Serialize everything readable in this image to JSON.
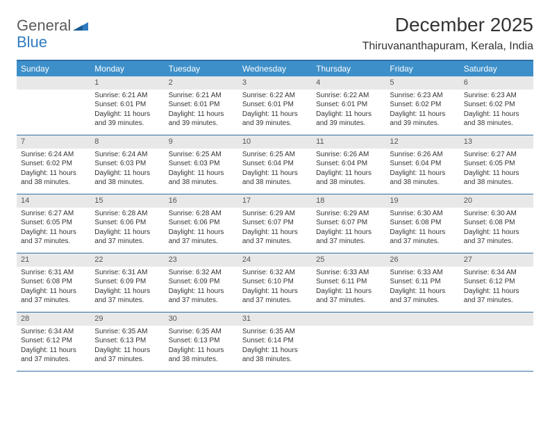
{
  "logo": {
    "text1": "General",
    "text2": "Blue"
  },
  "title": "December 2025",
  "location": "Thiruvananthapuram, Kerala, India",
  "colors": {
    "header_bg": "#3d8fc9",
    "border": "#2f6da3",
    "daynum_bg": "#e8e8e8",
    "text": "#333333",
    "logo_gray": "#5a5a5a",
    "logo_blue": "#2f7bbf"
  },
  "day_names": [
    "Sunday",
    "Monday",
    "Tuesday",
    "Wednesday",
    "Thursday",
    "Friday",
    "Saturday"
  ],
  "start_offset": 1,
  "days": [
    {
      "n": 1,
      "sr": "6:21 AM",
      "ss": "6:01 PM",
      "dl": "11 hours and 39 minutes."
    },
    {
      "n": 2,
      "sr": "6:21 AM",
      "ss": "6:01 PM",
      "dl": "11 hours and 39 minutes."
    },
    {
      "n": 3,
      "sr": "6:22 AM",
      "ss": "6:01 PM",
      "dl": "11 hours and 39 minutes."
    },
    {
      "n": 4,
      "sr": "6:22 AM",
      "ss": "6:01 PM",
      "dl": "11 hours and 39 minutes."
    },
    {
      "n": 5,
      "sr": "6:23 AM",
      "ss": "6:02 PM",
      "dl": "11 hours and 39 minutes."
    },
    {
      "n": 6,
      "sr": "6:23 AM",
      "ss": "6:02 PM",
      "dl": "11 hours and 38 minutes."
    },
    {
      "n": 7,
      "sr": "6:24 AM",
      "ss": "6:02 PM",
      "dl": "11 hours and 38 minutes."
    },
    {
      "n": 8,
      "sr": "6:24 AM",
      "ss": "6:03 PM",
      "dl": "11 hours and 38 minutes."
    },
    {
      "n": 9,
      "sr": "6:25 AM",
      "ss": "6:03 PM",
      "dl": "11 hours and 38 minutes."
    },
    {
      "n": 10,
      "sr": "6:25 AM",
      "ss": "6:04 PM",
      "dl": "11 hours and 38 minutes."
    },
    {
      "n": 11,
      "sr": "6:26 AM",
      "ss": "6:04 PM",
      "dl": "11 hours and 38 minutes."
    },
    {
      "n": 12,
      "sr": "6:26 AM",
      "ss": "6:04 PM",
      "dl": "11 hours and 38 minutes."
    },
    {
      "n": 13,
      "sr": "6:27 AM",
      "ss": "6:05 PM",
      "dl": "11 hours and 38 minutes."
    },
    {
      "n": 14,
      "sr": "6:27 AM",
      "ss": "6:05 PM",
      "dl": "11 hours and 37 minutes."
    },
    {
      "n": 15,
      "sr": "6:28 AM",
      "ss": "6:06 PM",
      "dl": "11 hours and 37 minutes."
    },
    {
      "n": 16,
      "sr": "6:28 AM",
      "ss": "6:06 PM",
      "dl": "11 hours and 37 minutes."
    },
    {
      "n": 17,
      "sr": "6:29 AM",
      "ss": "6:07 PM",
      "dl": "11 hours and 37 minutes."
    },
    {
      "n": 18,
      "sr": "6:29 AM",
      "ss": "6:07 PM",
      "dl": "11 hours and 37 minutes."
    },
    {
      "n": 19,
      "sr": "6:30 AM",
      "ss": "6:08 PM",
      "dl": "11 hours and 37 minutes."
    },
    {
      "n": 20,
      "sr": "6:30 AM",
      "ss": "6:08 PM",
      "dl": "11 hours and 37 minutes."
    },
    {
      "n": 21,
      "sr": "6:31 AM",
      "ss": "6:08 PM",
      "dl": "11 hours and 37 minutes."
    },
    {
      "n": 22,
      "sr": "6:31 AM",
      "ss": "6:09 PM",
      "dl": "11 hours and 37 minutes."
    },
    {
      "n": 23,
      "sr": "6:32 AM",
      "ss": "6:09 PM",
      "dl": "11 hours and 37 minutes."
    },
    {
      "n": 24,
      "sr": "6:32 AM",
      "ss": "6:10 PM",
      "dl": "11 hours and 37 minutes."
    },
    {
      "n": 25,
      "sr": "6:33 AM",
      "ss": "6:11 PM",
      "dl": "11 hours and 37 minutes."
    },
    {
      "n": 26,
      "sr": "6:33 AM",
      "ss": "6:11 PM",
      "dl": "11 hours and 37 minutes."
    },
    {
      "n": 27,
      "sr": "6:34 AM",
      "ss": "6:12 PM",
      "dl": "11 hours and 37 minutes."
    },
    {
      "n": 28,
      "sr": "6:34 AM",
      "ss": "6:12 PM",
      "dl": "11 hours and 37 minutes."
    },
    {
      "n": 29,
      "sr": "6:35 AM",
      "ss": "6:13 PM",
      "dl": "11 hours and 37 minutes."
    },
    {
      "n": 30,
      "sr": "6:35 AM",
      "ss": "6:13 PM",
      "dl": "11 hours and 38 minutes."
    },
    {
      "n": 31,
      "sr": "6:35 AM",
      "ss": "6:14 PM",
      "dl": "11 hours and 38 minutes."
    }
  ],
  "labels": {
    "sunrise": "Sunrise:",
    "sunset": "Sunset:",
    "daylight": "Daylight:"
  }
}
